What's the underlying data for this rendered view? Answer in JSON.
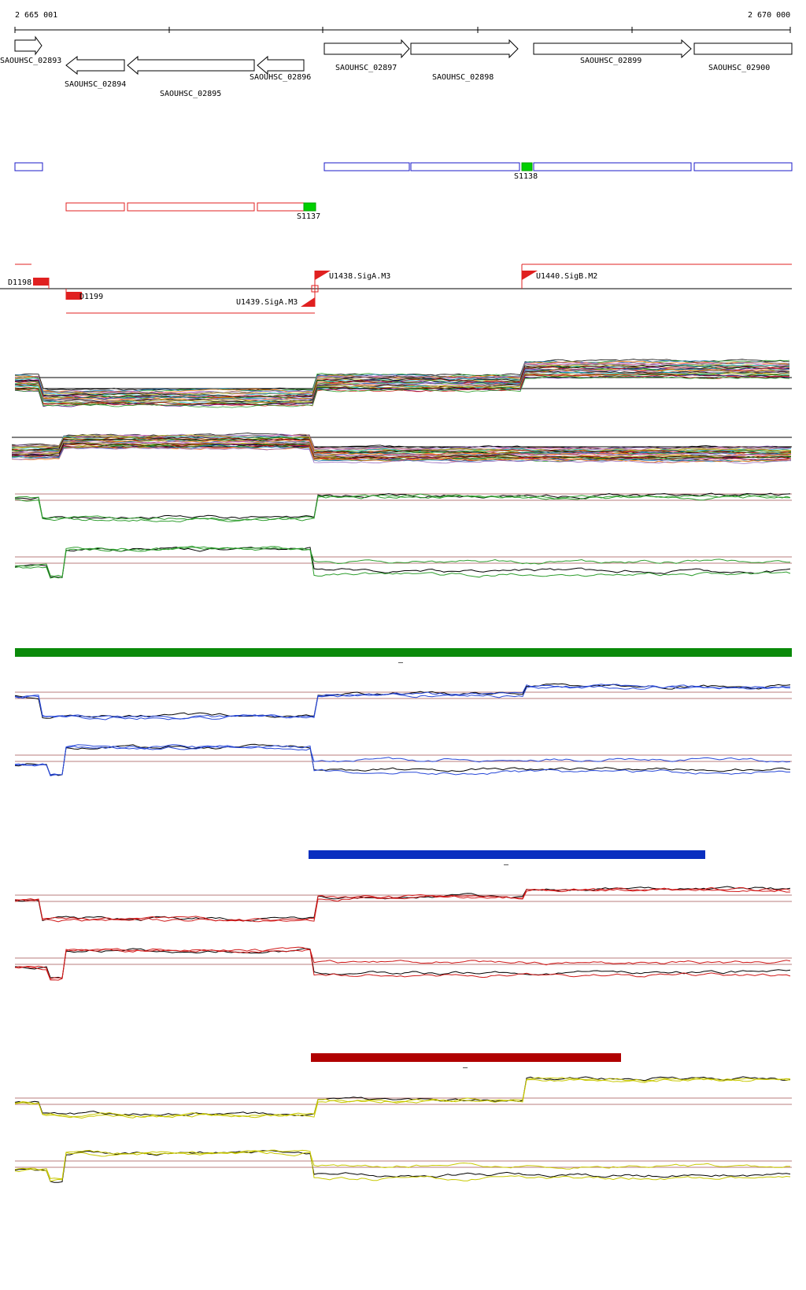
{
  "ruler": {
    "start_label": "2 665 001",
    "end_label": "2 670 000",
    "start": 2665001,
    "end": 2670000
  },
  "genes": [
    {
      "id": "SAOUHSC_02893",
      "strand": "+",
      "start": 2665001,
      "end": 2665178
    },
    {
      "id": "SAOUHSC_02894",
      "strand": "-",
      "start": 2665325,
      "end": 2665708
    },
    {
      "id": "SAOUHSC_02895",
      "strand": "-",
      "start": 2665719,
      "end": 2666564
    },
    {
      "id": "SAOUHSC_02896",
      "strand": "-",
      "start": 2666574,
      "end": 2666874
    },
    {
      "id": "SAOUHSC_02897",
      "strand": "+",
      "start": 2666938,
      "end": 2667495
    },
    {
      "id": "SAOUHSC_02898",
      "strand": "+",
      "start": 2667500,
      "end": 2668211
    },
    {
      "id": "SAOUHSC_02899",
      "strand": "+",
      "start": 2668349,
      "end": 2669378
    },
    {
      "id": "SAOUHSC_02900",
      "strand": "+",
      "start": 2669407,
      "end": 2670000
    }
  ],
  "segments": {
    "forward_label": "S1138",
    "reverse_label": "S1137",
    "forward_color": "#1b1bc8",
    "reverse_color": "#e02020",
    "highlight_color": "#00d000"
  },
  "promoters": [
    {
      "id": "D1198",
      "strand": "+"
    },
    {
      "id": "D1199",
      "strand": "-"
    },
    {
      "id": "U1438.SigA.M3",
      "strand": "+"
    },
    {
      "id": "U1439.SigA.M3",
      "strand": "-"
    },
    {
      "id": "U1440.SigB.M2",
      "strand": "+"
    }
  ],
  "conditions": [
    {
      "name": "green",
      "color": "#0a8a0a",
      "trace_color": "#2f9e2f"
    },
    {
      "name": "blue",
      "color": "#0a2fc0",
      "trace_color": "#2848d8"
    },
    {
      "name": "red",
      "color": "#b00000",
      "trace_color": "#d01818"
    },
    {
      "name": "yellow",
      "color": "#c8c800",
      "trace_color": "#c8c800"
    }
  ],
  "condition_bar_marks": [
    "–",
    "–",
    "–"
  ]
}
